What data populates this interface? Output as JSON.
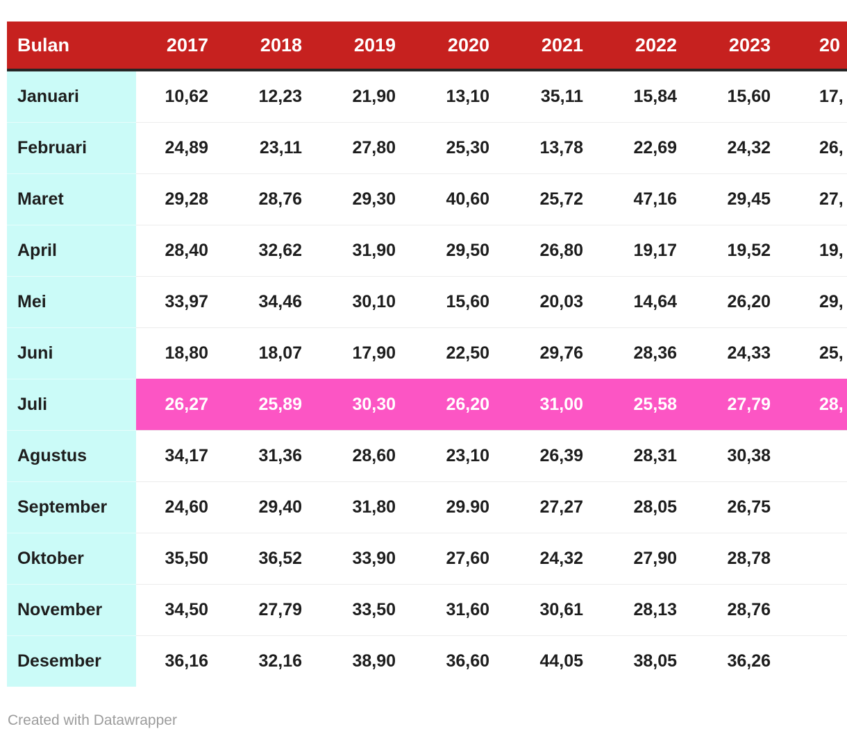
{
  "table": {
    "header": {
      "month_col_label": "Bulan",
      "years": [
        "2017",
        "2018",
        "2019",
        "2020",
        "2021",
        "2022",
        "2023"
      ],
      "clipped_year_fragment": "20"
    },
    "rows": [
      {
        "month": "Januari",
        "values": [
          "10,62",
          "12,23",
          "21,90",
          "13,10",
          "35,11",
          "15,84",
          "15,60"
        ],
        "clipped_value_fragment": "17,",
        "highlight": false
      },
      {
        "month": "Februari",
        "values": [
          "24,89",
          "23,11",
          "27,80",
          "25,30",
          "13,78",
          "22,69",
          "24,32"
        ],
        "clipped_value_fragment": "26,",
        "highlight": false
      },
      {
        "month": "Maret",
        "values": [
          "29,28",
          "28,76",
          "29,30",
          "40,60",
          "25,72",
          "47,16",
          "29,45"
        ],
        "clipped_value_fragment": "27,",
        "highlight": false
      },
      {
        "month": "April",
        "values": [
          "28,40",
          "32,62",
          "31,90",
          "29,50",
          "26,80",
          "19,17",
          "19,52"
        ],
        "clipped_value_fragment": "19,",
        "highlight": false
      },
      {
        "month": "Mei",
        "values": [
          "33,97",
          "34,46",
          "30,10",
          "15,60",
          "20,03",
          "14,64",
          "26,20"
        ],
        "clipped_value_fragment": "29,",
        "highlight": false
      },
      {
        "month": "Juni",
        "values": [
          "18,80",
          "18,07",
          "17,90",
          "22,50",
          "29,76",
          "28,36",
          "24,33"
        ],
        "clipped_value_fragment": "25,",
        "highlight": false
      },
      {
        "month": "Juli",
        "values": [
          "26,27",
          "25,89",
          "30,30",
          "26,20",
          "31,00",
          "25,58",
          "27,79"
        ],
        "clipped_value_fragment": "28,",
        "highlight": true
      },
      {
        "month": "Agustus",
        "values": [
          "34,17",
          "31,36",
          "28,60",
          "23,10",
          "26,39",
          "28,31",
          "30,38"
        ],
        "clipped_value_fragment": "",
        "highlight": false
      },
      {
        "month": "September",
        "values": [
          "24,60",
          "29,40",
          "31,80",
          "29.90",
          "27,27",
          "28,05",
          "26,75"
        ],
        "clipped_value_fragment": "",
        "highlight": false
      },
      {
        "month": "Oktober",
        "values": [
          "35,50",
          "36,52",
          "33,90",
          "27,60",
          "24,32",
          "27,90",
          "28,78"
        ],
        "clipped_value_fragment": "",
        "highlight": false
      },
      {
        "month": "November",
        "values": [
          "34,50",
          "27,79",
          "33,50",
          "31,60",
          "30,61",
          "28,13",
          "28,76"
        ],
        "clipped_value_fragment": "",
        "highlight": false
      },
      {
        "month": "Desember",
        "values": [
          "36,16",
          "32,16",
          "38,90",
          "36,60",
          "44,05",
          "38,05",
          "36,26"
        ],
        "clipped_value_fragment": "",
        "highlight": false
      }
    ]
  },
  "footer": {
    "credit": "Created with Datawrapper"
  },
  "colors": {
    "header_bg": "#c6211f",
    "header_text": "#ffffff",
    "header_underline": "#262626",
    "month_col_bg": "#cbfbf8",
    "highlight_bg": "#fc55c4",
    "highlight_text": "#ffffff",
    "body_text": "#1d1d1d",
    "row_separator": "#ececec",
    "credit_text": "#9c9c9c"
  },
  "chart_data": {
    "type": "table",
    "columns": [
      "Bulan",
      "2017",
      "2018",
      "2019",
      "2020",
      "2021",
      "2022",
      "2023"
    ],
    "clipped_last_column_header_fragment": "20",
    "months": [
      "Januari",
      "Februari",
      "Maret",
      "April",
      "Mei",
      "Juni",
      "Juli",
      "Agustus",
      "September",
      "Oktober",
      "November",
      "Desember"
    ],
    "series": [
      {
        "name": "2017",
        "values": [
          10.62,
          24.89,
          29.28,
          28.4,
          33.97,
          18.8,
          26.27,
          34.17,
          24.6,
          35.5,
          34.5,
          36.16
        ]
      },
      {
        "name": "2018",
        "values": [
          12.23,
          23.11,
          28.76,
          32.62,
          34.46,
          18.07,
          25.89,
          31.36,
          29.4,
          36.52,
          27.79,
          32.16
        ]
      },
      {
        "name": "2019",
        "values": [
          21.9,
          27.8,
          29.3,
          31.9,
          30.1,
          17.9,
          30.3,
          28.6,
          31.8,
          33.9,
          33.5,
          38.9
        ]
      },
      {
        "name": "2020",
        "values": [
          13.1,
          25.3,
          40.6,
          29.5,
          15.6,
          22.5,
          26.2,
          23.1,
          29.9,
          27.6,
          31.6,
          36.6
        ]
      },
      {
        "name": "2021",
        "values": [
          35.11,
          13.78,
          25.72,
          26.8,
          20.03,
          29.76,
          31.0,
          26.39,
          27.27,
          24.32,
          30.61,
          44.05
        ]
      },
      {
        "name": "2022",
        "values": [
          15.84,
          22.69,
          47.16,
          19.17,
          14.64,
          28.36,
          25.58,
          28.31,
          28.05,
          27.9,
          28.13,
          38.05
        ]
      },
      {
        "name": "2023",
        "values": [
          15.6,
          24.32,
          29.45,
          19.52,
          26.2,
          24.33,
          27.79,
          30.38,
          26.75,
          28.78,
          28.76,
          36.26
        ]
      }
    ],
    "clipped_last_column_value_fragments": [
      "17,",
      "26,",
      "27,",
      "19,",
      "29,",
      "25,",
      "28,",
      "",
      "",
      "",
      "",
      ""
    ],
    "highlighted_row": "Juli",
    "legend_position": "none",
    "grid": "row-separators"
  }
}
